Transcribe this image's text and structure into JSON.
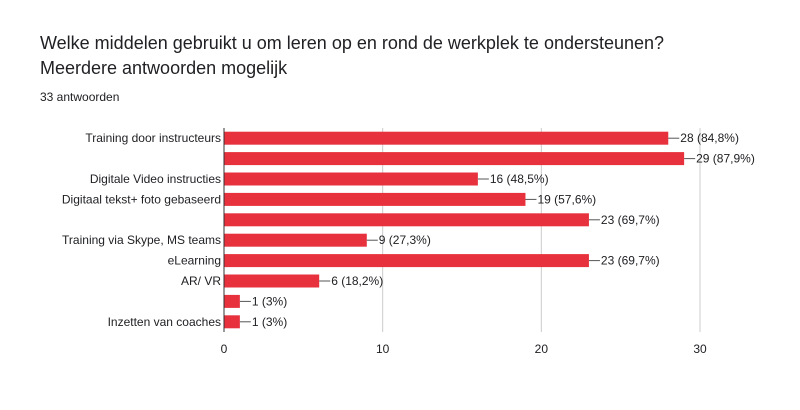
{
  "form": {
    "question": "Welke middelen gebruikt u om leren op en rond de werkplek te ondersteunen? Meerdere antwoorden mogelijk",
    "responses": "33 antwoorden"
  },
  "colors": {
    "bar": "#e7323e",
    "axis": "#333333",
    "grid": "#cccccc",
    "text": "#202124"
  },
  "chart_data": {
    "type": "bar",
    "orientation": "horizontal",
    "categories": [
      "Training door instructeurs",
      "",
      "Digitale Video instructies",
      "Digitaal tekst+ foto gebaseerd",
      "",
      "Training via Skype, MS teams",
      "eLearning",
      "AR/ VR",
      "",
      "Inzetten van coaches"
    ],
    "values": [
      28,
      29,
      16,
      19,
      23,
      9,
      23,
      6,
      1,
      1
    ],
    "data_labels": [
      "28 (84,8%)",
      "29 (87,9%)",
      "16 (48,5%)",
      "19 (57,6%)",
      "23 (69,7%)",
      "9 (27,3%)",
      "23 (69,7%)",
      "6 (18,2%)",
      "1 (3%)",
      "1 (3%)"
    ],
    "xlim": [
      0,
      30
    ],
    "xticks": [
      0,
      10,
      20,
      30
    ],
    "grid": true,
    "legend": "none"
  }
}
